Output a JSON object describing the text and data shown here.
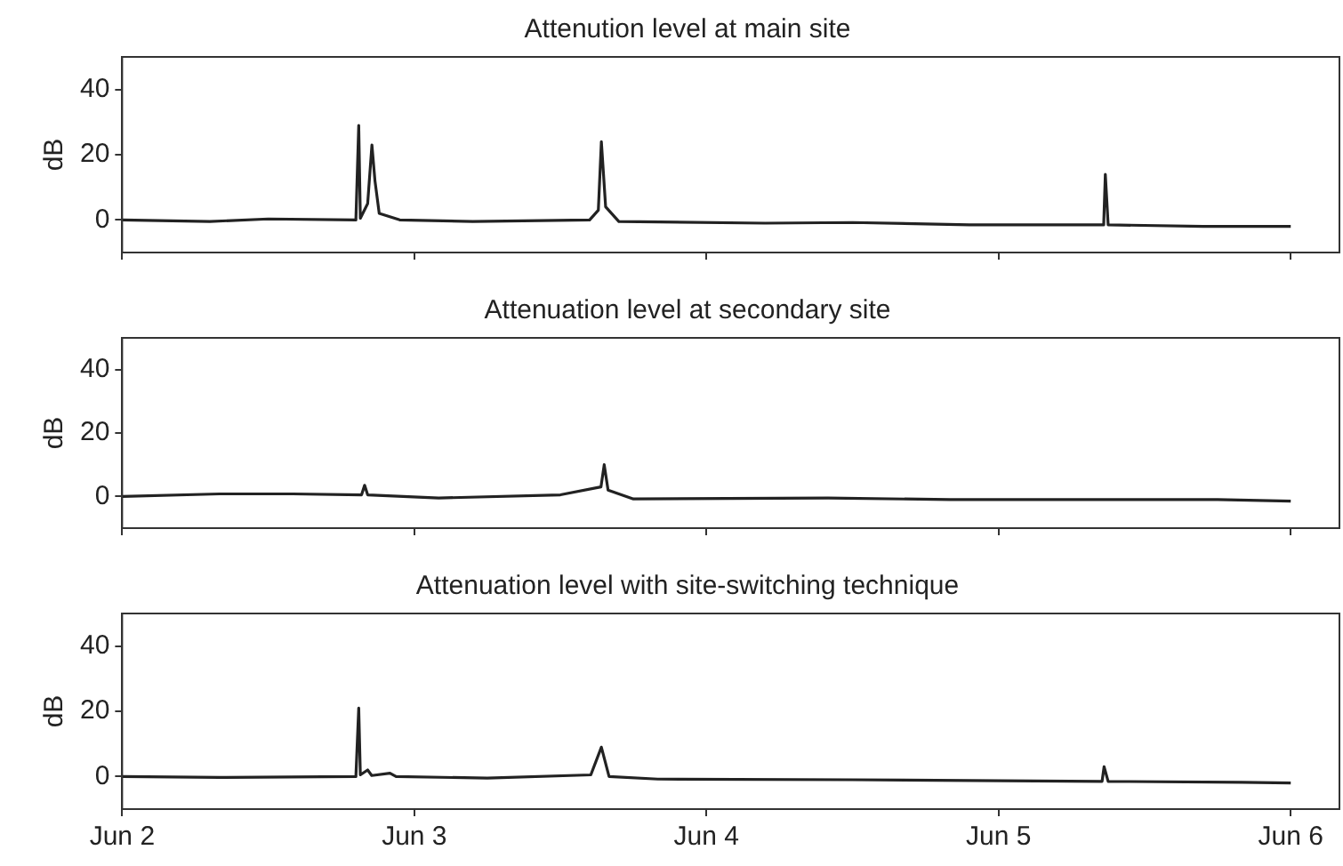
{
  "chart_data": [
    {
      "type": "line",
      "title": "Attenution level at main site",
      "ylabel": "dB",
      "tick_labels": "y",
      "grid": false,
      "legend": false,
      "marker": "none",
      "line_style": "solid",
      "xlim": [
        "--06-02",
        "--06-06T04:00"
      ],
      "xticks": [
        {
          "value": "--06-02",
          "label": null
        },
        {
          "value": "--06-03",
          "label": null
        },
        {
          "value": "--06-04",
          "label": null
        },
        {
          "value": "--06-05",
          "label": null
        },
        {
          "value": "--06-06",
          "label": null
        }
      ],
      "ylim": [
        -10,
        50
      ],
      "yticks": [
        0,
        20,
        40
      ],
      "x": [
        "--06-02T00:00",
        "--06-02T07:12",
        "--06-02T12:00",
        "--06-02T19:12",
        "--06-02T19:26",
        "--06-02T19:34",
        "--06-02T20:10",
        "--06-02T20:31",
        "--06-02T20:46",
        "--06-02T21:07",
        "--06-02T22:48",
        "--06-03T04:48",
        "--06-03T14:24",
        "--06-03T15:07",
        "--06-03T15:22",
        "--06-03T15:43",
        "--06-03T16:48",
        "--06-04T04:48",
        "--06-04T12:00",
        "--06-04T21:36",
        "--06-05T08:38",
        "--06-05T08:46",
        "--06-05T09:00",
        "--06-05T16:48",
        "--06-06T00:00"
      ],
      "series": [
        {
          "color": "#222222",
          "values": [
            0,
            -0.5,
            0.3,
            0,
            29,
            0.5,
            5,
            23,
            12,
            2,
            0,
            -0.5,
            0,
            3,
            24,
            4,
            -0.5,
            -1,
            -0.8,
            -1.5,
            -1.5,
            14,
            -1.5,
            -2,
            -2
          ]
        }
      ]
    },
    {
      "type": "line",
      "title": "Attenuation level at secondary site",
      "ylabel": "dB",
      "tick_labels": "y",
      "grid": false,
      "legend": false,
      "marker": "none",
      "line_style": "solid",
      "xlim": [
        "--06-02",
        "--06-06T04:00"
      ],
      "xticks": [
        {
          "value": "--06-02",
          "label": null
        },
        {
          "value": "--06-03",
          "label": null
        },
        {
          "value": "--06-04",
          "label": null
        },
        {
          "value": "--06-05",
          "label": null
        },
        {
          "value": "--06-06",
          "label": null
        }
      ],
      "ylim": [
        -10,
        50
      ],
      "yticks": [
        0,
        20,
        40
      ],
      "x": [
        "--06-02T00:00",
        "--06-02T08:00",
        "--06-02T14:00",
        "--06-02T19:40",
        "--06-02T19:55",
        "--06-02T20:10",
        "--06-03T02:00",
        "--06-03T12:00",
        "--06-03T15:20",
        "--06-03T15:36",
        "--06-03T15:55",
        "--06-03T18:00",
        "--06-04T10:00",
        "--06-04T20:00",
        "--06-05T09:00",
        "--06-05T18:00",
        "--06-06T00:00"
      ],
      "series": [
        {
          "color": "#222222",
          "values": [
            0,
            0.8,
            0.8,
            0.5,
            3.5,
            0.5,
            -0.5,
            0.5,
            3,
            10,
            2,
            -0.8,
            -0.5,
            -1,
            -1,
            -1,
            -1.5
          ]
        }
      ]
    },
    {
      "type": "line",
      "title": "Attenuation level with site-switching technique",
      "ylabel": "dB",
      "grid": false,
      "legend": false,
      "marker": "none",
      "line_style": "solid",
      "xlim": [
        "--06-02",
        "--06-06T04:00"
      ],
      "xticks": [
        {
          "value": "--06-02",
          "label": "Jun 2"
        },
        {
          "value": "--06-03",
          "label": "Jun 3"
        },
        {
          "value": "--06-04",
          "label": "Jun 4"
        },
        {
          "value": "--06-05",
          "label": "Jun 5"
        },
        {
          "value": "--06-06",
          "label": "Jun 6"
        }
      ],
      "ylim": [
        -10,
        50
      ],
      "yticks": [
        0,
        20,
        40
      ],
      "x": [
        "--06-02T00:00",
        "--06-02T08:00",
        "--06-02T19:12",
        "--06-02T19:26",
        "--06-02T19:34",
        "--06-02T20:10",
        "--06-02T20:30",
        "--06-02T22:00",
        "--06-02T22:30",
        "--06-03T06:00",
        "--06-03T14:30",
        "--06-03T15:22",
        "--06-03T16:00",
        "--06-03T20:00",
        "--06-04T12:00",
        "--06-05T08:30",
        "--06-05T08:40",
        "--06-05T09:00",
        "--06-05T20:00",
        "--06-06T00:00"
      ],
      "series": [
        {
          "color": "#222222",
          "values": [
            0,
            -0.3,
            0,
            21,
            0.5,
            2,
            0.3,
            1,
            0,
            -0.5,
            0.5,
            9,
            0,
            -0.8,
            -1,
            -1.5,
            3,
            -1.5,
            -1.8,
            -2
          ]
        }
      ]
    }
  ]
}
